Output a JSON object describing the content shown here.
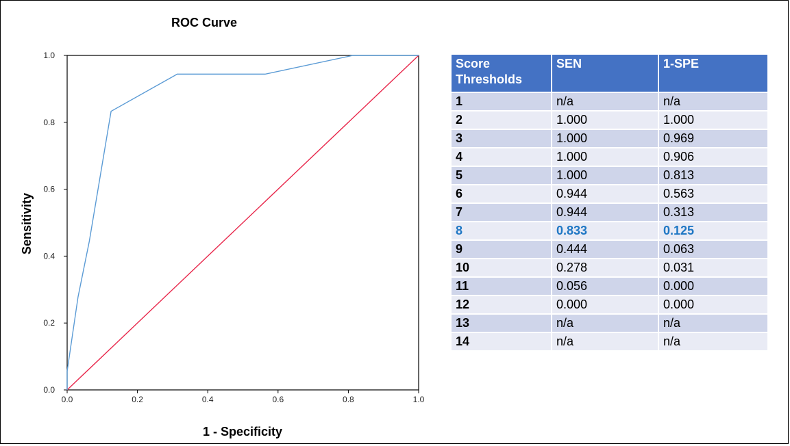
{
  "colors": {
    "roc_line": "#5b9bd5",
    "reference_line": "#e8274b",
    "table_header": "#4472c4",
    "row_dark": "#cfd5ea",
    "row_light": "#e9ebf5",
    "highlight_text": "#1f77c4"
  },
  "chart_data": {
    "type": "line",
    "title": "ROC Curve",
    "xlabel": "1 - Specificity",
    "ylabel": "Sensitivity",
    "xlim": [
      0,
      1
    ],
    "ylim": [
      0,
      1
    ],
    "xticks": [
      "0.0",
      "0.2",
      "0.4",
      "0.6",
      "0.8",
      "1.0"
    ],
    "yticks": [
      "0.0",
      "0.2",
      "0.4",
      "0.6",
      "0.8",
      "1.0"
    ],
    "grid": false,
    "series": [
      {
        "x": [
          0.0,
          0.0,
          0.031,
          0.063,
          0.125,
          0.313,
          0.563,
          0.813,
          0.906,
          0.969,
          1.0
        ],
        "y": [
          0.0,
          0.056,
          0.278,
          0.444,
          0.833,
          0.944,
          0.944,
          1.0,
          1.0,
          1.0,
          1.0
        ]
      },
      {
        "x": [
          0,
          1
        ],
        "y": [
          0,
          1
        ]
      }
    ]
  },
  "table": {
    "headers": [
      "Score Thresholds",
      "SEN",
      "1-SPE"
    ],
    "rows": [
      {
        "score": "1",
        "sen": "n/a",
        "spe": "n/a"
      },
      {
        "score": "2",
        "sen": "1.000",
        "spe": "1.000"
      },
      {
        "score": "3",
        "sen": "1.000",
        "spe": "0.969"
      },
      {
        "score": "4",
        "sen": "1.000",
        "spe": "0.906"
      },
      {
        "score": "5",
        "sen": "1.000",
        "spe": "0.813"
      },
      {
        "score": "6",
        "sen": "0.944",
        "spe": "0.563"
      },
      {
        "score": "7",
        "sen": "0.944",
        "spe": "0.313"
      },
      {
        "score": "8",
        "sen": "0.833",
        "spe": "0.125",
        "highlight": true
      },
      {
        "score": "9",
        "sen": "0.444",
        "spe": "0.063"
      },
      {
        "score": "10",
        "sen": "0.278",
        "spe": "0.031"
      },
      {
        "score": "11",
        "sen": "0.056",
        "spe": "0.000"
      },
      {
        "score": "12",
        "sen": "0.000",
        "spe": "0.000"
      },
      {
        "score": "13",
        "sen": "n/a",
        "spe": "n/a"
      },
      {
        "score": "14",
        "sen": "n/a",
        "spe": "n/a"
      }
    ]
  }
}
